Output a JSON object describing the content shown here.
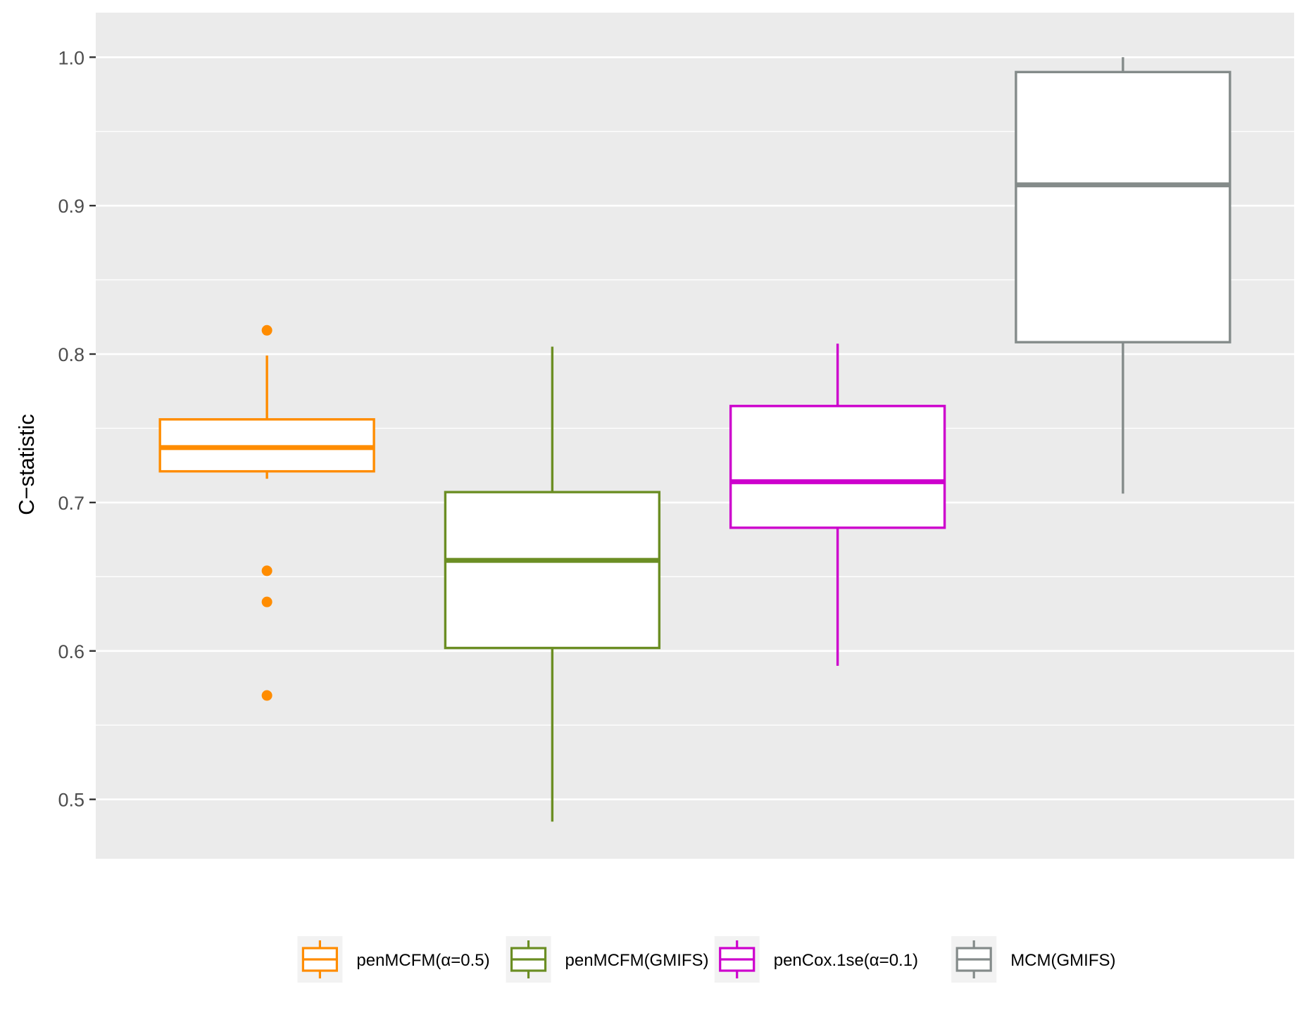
{
  "chart_data": {
    "type": "box",
    "ylabel": "C−statistic",
    "xlabel": "",
    "ylim": [
      0.46,
      1.03
    ],
    "yticks": [
      0.5,
      0.6,
      0.7,
      0.8,
      0.9,
      1.0
    ],
    "ytick_labels": [
      "0.5",
      "0.6",
      "0.7",
      "0.8",
      "0.9",
      "1.0"
    ],
    "grid": true,
    "legend_position": "bottom",
    "series": [
      {
        "name": "penMCFM(α=0.5)",
        "color": "#ff8c00",
        "whisker_low": 0.716,
        "q1": 0.721,
        "median": 0.737,
        "q3": 0.756,
        "whisker_high": 0.799,
        "outliers": [
          0.816,
          0.654,
          0.633,
          0.57
        ]
      },
      {
        "name": "penMCFM(GMIFS)",
        "color": "#6b8e23",
        "whisker_low": 0.485,
        "q1": 0.602,
        "median": 0.661,
        "q3": 0.707,
        "whisker_high": 0.805,
        "outliers": []
      },
      {
        "name": "penCox.1se(α=0.1)",
        "color": "#cd00cd",
        "whisker_low": 0.59,
        "q1": 0.683,
        "median": 0.714,
        "q3": 0.765,
        "whisker_high": 0.807,
        "outliers": []
      },
      {
        "name": "MCM(GMIFS)",
        "color": "#848b8a",
        "whisker_low": 0.706,
        "q1": 0.808,
        "median": 0.914,
        "q3": 0.99,
        "whisker_high": 1.0,
        "outliers": []
      }
    ]
  }
}
